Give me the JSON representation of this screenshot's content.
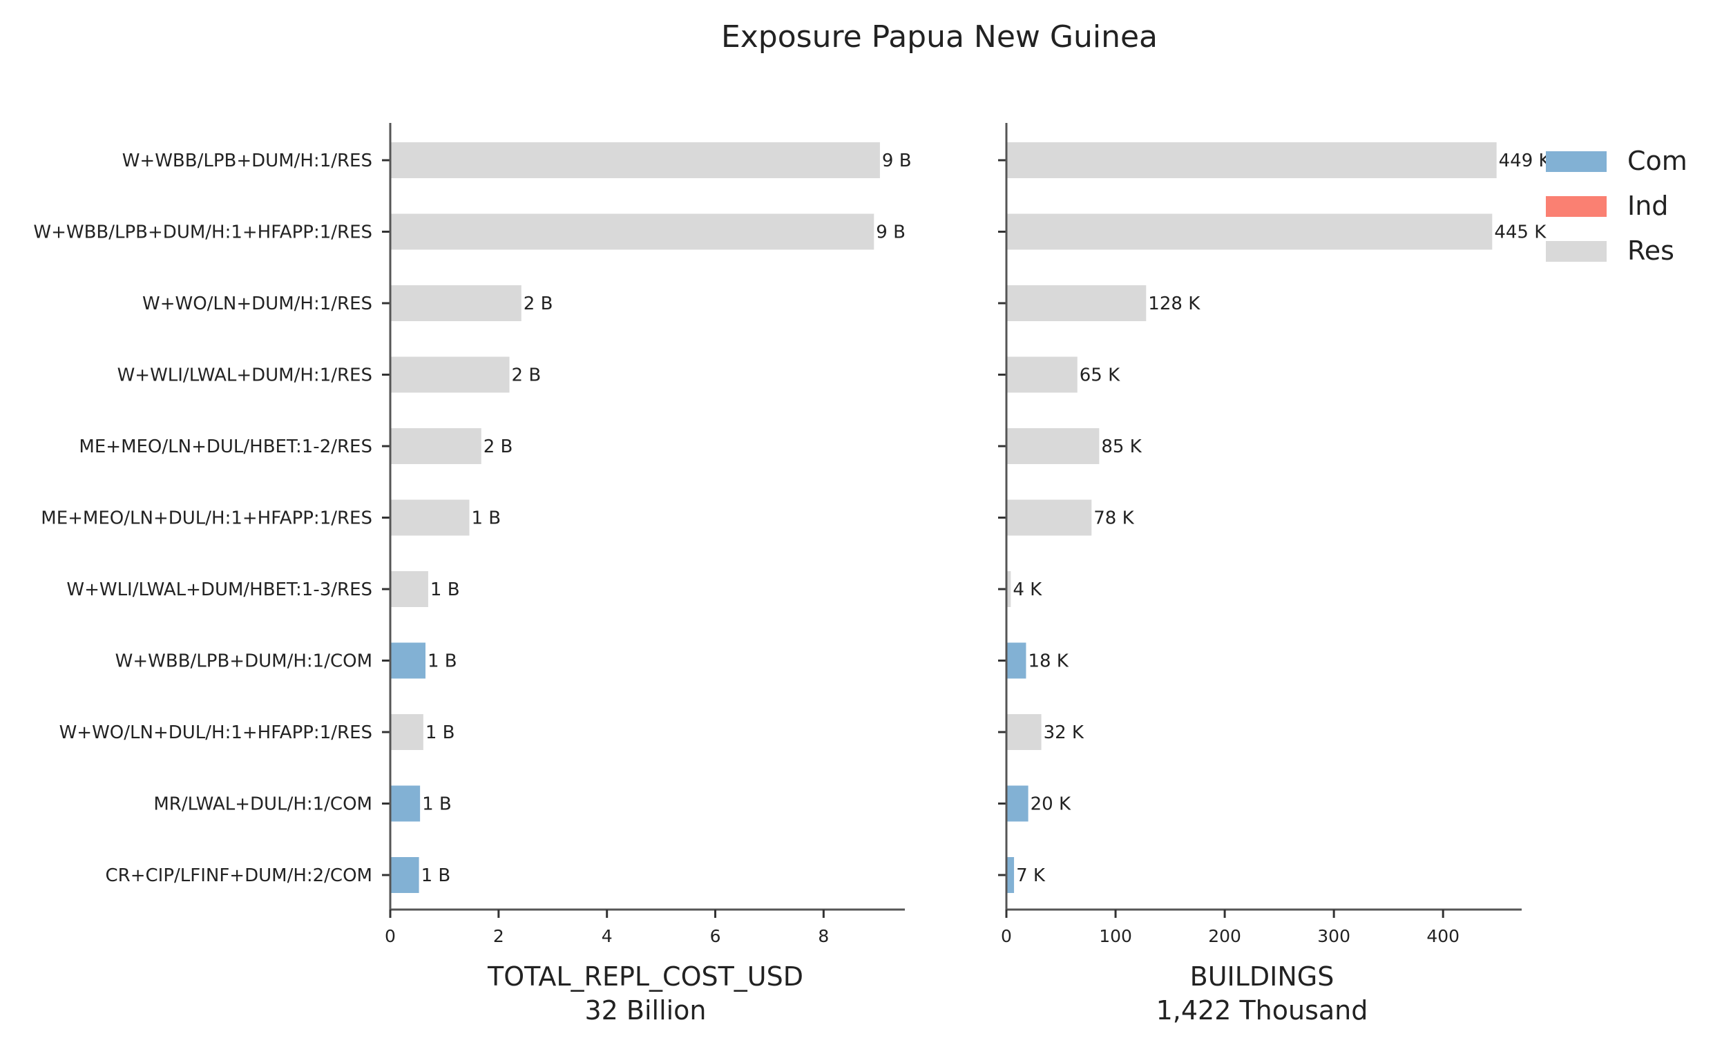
{
  "chart_data": {
    "type": "bar",
    "orientation": "horizontal",
    "title": "Exposure Papua New Guinea",
    "categories": [
      "W+WBB/LPB+DUM/H:1/RES",
      "W+WBB/LPB+DUM/H:1+HFAPP:1/RES",
      "W+WO/LN+DUM/H:1/RES",
      "W+WLI/LWAL+DUM/H:1/RES",
      "ME+MEO/LN+DUL/HBET:1-2/RES",
      "ME+MEO/LN+DUL/H:1+HFAPP:1/RES",
      "W+WLI/LWAL+DUM/HBET:1-3/RES",
      "W+WBB/LPB+DUM/H:1/COM",
      "W+WO/LN+DUL/H:1+HFAPP:1/RES",
      "MR/LWAL+DUL/H:1/COM",
      "CR+CIP/LFINF+DUM/H:2/COM"
    ],
    "occupancy": [
      "Res",
      "Res",
      "Res",
      "Res",
      "Res",
      "Res",
      "Res",
      "Com",
      "Res",
      "Com",
      "Com"
    ],
    "legend": {
      "position": "top-right",
      "entries": [
        {
          "name": "Com",
          "color": "#82b1d4"
        },
        {
          "name": "Ind",
          "color": "#fa8072"
        },
        {
          "name": "Res",
          "color": "#d9d9d9"
        }
      ]
    },
    "panels": [
      {
        "metric": "TOTAL_REPL_COST_USD",
        "xlabel": "TOTAL_REPL_COST_USD",
        "total_label": "32 Billion",
        "unit": "Billion USD",
        "xlim": [
          0,
          9.5
        ],
        "ticks": [
          0,
          2,
          4,
          6,
          8
        ],
        "tick_labels": [
          "0",
          "2",
          "4",
          "6",
          "8"
        ],
        "values": [
          9.04,
          8.93,
          2.42,
          2.2,
          1.68,
          1.46,
          0.7,
          0.65,
          0.61,
          0.55,
          0.53
        ],
        "value_labels": [
          "9 B",
          "9 B",
          "2 B",
          "2 B",
          "2 B",
          "1 B",
          "1 B",
          "1 B",
          "1 B",
          "1 B",
          "1 B"
        ]
      },
      {
        "metric": "BUILDINGS",
        "xlabel": "BUILDINGS",
        "total_label": "1,422 Thousand",
        "unit": "Thousand buildings",
        "xlim": [
          0,
          472
        ],
        "ticks": [
          0,
          100,
          200,
          300,
          400
        ],
        "tick_labels": [
          "0",
          "100",
          "200",
          "300",
          "400"
        ],
        "values": [
          449,
          445,
          128,
          65,
          85,
          78,
          4,
          18,
          32,
          20,
          7
        ],
        "value_labels": [
          "449 K",
          "445 K",
          "128 K",
          "65 K",
          "85 K",
          "78 K",
          "4 K",
          "18 K",
          "32 K",
          "20 K",
          "7 K"
        ]
      }
    ]
  }
}
